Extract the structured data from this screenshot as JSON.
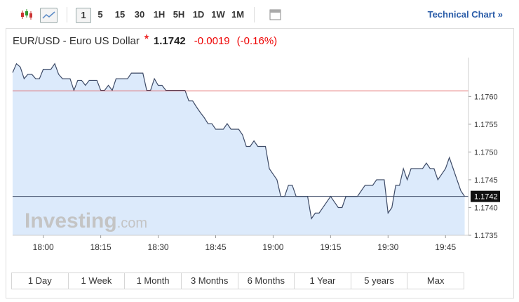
{
  "toolbar": {
    "intervals": [
      "1",
      "5",
      "15",
      "30",
      "1H",
      "5H",
      "1D",
      "1W",
      "1M"
    ],
    "link": "Technical Chart »"
  },
  "header": {
    "instrument": "EUR/USD - Euro US Dollar",
    "price": "1.1742",
    "change": "-0.0019",
    "change_pct": "(-0.16%)"
  },
  "watermark": {
    "brand": "Investing",
    "suffix": ".com"
  },
  "ranges": [
    "1 Day",
    "1 Week",
    "1 Month",
    "3 Months",
    "6 Months",
    "1 Year",
    "5 years",
    "Max"
  ],
  "chart_data": {
    "type": "area",
    "line_color": "#3d4a66",
    "fill_color": "#dceafb",
    "x": [
      "17:52",
      "17:53",
      "17:54",
      "17:55",
      "17:56",
      "17:57",
      "17:58",
      "17:59",
      "18:00",
      "18:01",
      "18:02",
      "18:03",
      "18:04",
      "18:05",
      "18:06",
      "18:07",
      "18:08",
      "18:09",
      "18:10",
      "18:11",
      "18:12",
      "18:13",
      "18:14",
      "18:15",
      "18:16",
      "18:17",
      "18:18",
      "18:19",
      "18:20",
      "18:21",
      "18:22",
      "18:23",
      "18:24",
      "18:25",
      "18:26",
      "18:27",
      "18:28",
      "18:29",
      "18:30",
      "18:31",
      "18:32",
      "18:33",
      "18:34",
      "18:35",
      "18:36",
      "18:37",
      "18:38",
      "18:39",
      "18:40",
      "18:41",
      "18:42",
      "18:43",
      "18:44",
      "18:45",
      "18:46",
      "18:47",
      "18:48",
      "18:49",
      "18:50",
      "18:51",
      "18:52",
      "18:53",
      "18:54",
      "18:55",
      "18:56",
      "18:57",
      "18:58",
      "18:59",
      "19:00",
      "19:01",
      "19:02",
      "19:03",
      "19:04",
      "19:05",
      "19:06",
      "19:07",
      "19:08",
      "19:09",
      "19:10",
      "19:11",
      "19:12",
      "19:13",
      "19:14",
      "19:15",
      "19:16",
      "19:17",
      "19:18",
      "19:19",
      "19:20",
      "19:21",
      "19:22",
      "19:23",
      "19:24",
      "19:25",
      "19:26",
      "19:27",
      "19:28",
      "19:29",
      "19:30",
      "19:31",
      "19:32",
      "19:33",
      "19:34",
      "19:35",
      "19:36",
      "19:37",
      "19:38",
      "19:39",
      "19:40",
      "19:41",
      "19:42",
      "19:43",
      "19:44",
      "19:45",
      "19:46",
      "19:47",
      "19:48",
      "19:49",
      "19:50"
    ],
    "values": [
      1.17643,
      1.17659,
      1.17653,
      1.17632,
      1.1764,
      1.1764,
      1.17632,
      1.17632,
      1.17649,
      1.17649,
      1.17649,
      1.17659,
      1.1764,
      1.17632,
      1.17632,
      1.17632,
      1.17611,
      1.17629,
      1.17629,
      1.1762,
      1.17629,
      1.17629,
      1.17629,
      1.17611,
      1.17611,
      1.1762,
      1.17611,
      1.17632,
      1.17632,
      1.17632,
      1.17632,
      1.17642,
      1.17642,
      1.17642,
      1.17642,
      1.17611,
      1.17611,
      1.17632,
      1.1762,
      1.1762,
      1.17611,
      1.17611,
      1.17611,
      1.17611,
      1.17611,
      1.17611,
      1.17592,
      1.17592,
      1.17581,
      1.17571,
      1.17562,
      1.17551,
      1.17551,
      1.17541,
      1.17541,
      1.17541,
      1.17551,
      1.17541,
      1.17541,
      1.17541,
      1.17531,
      1.1751,
      1.1751,
      1.1752,
      1.1751,
      1.1751,
      1.1751,
      1.1747,
      1.1746,
      1.1745,
      1.1742,
      1.1742,
      1.1744,
      1.1744,
      1.1742,
      1.1742,
      1.1742,
      1.1742,
      1.1738,
      1.1739,
      1.1739,
      1.174,
      1.1741,
      1.1742,
      1.1741,
      1.174,
      1.174,
      1.1742,
      1.1742,
      1.1742,
      1.1742,
      1.1743,
      1.1744,
      1.1744,
      1.1744,
      1.1745,
      1.1745,
      1.1745,
      1.1739,
      1.174,
      1.1744,
      1.1744,
      1.1747,
      1.1745,
      1.1747,
      1.1747,
      1.1747,
      1.1747,
      1.1748,
      1.1747,
      1.1747,
      1.1745,
      1.1746,
      1.1747,
      1.1749,
      1.1747,
      1.1745,
      1.1743,
      1.1742
    ],
    "xlim": [
      "17:52",
      "19:51"
    ],
    "xticks": [
      "18:00",
      "18:15",
      "18:30",
      "18:45",
      "19:00",
      "19:15",
      "19:30",
      "19:45"
    ],
    "ylim": [
      1.1735,
      1.1767
    ],
    "yticks": [
      {
        "value": 1.176,
        "label": "1.1760"
      },
      1.1755,
      {
        "value": 1.175,
        "label": "1.1750"
      },
      1.1745,
      {
        "value": 1.174,
        "label": "1.1740"
      },
      1.1735
    ],
    "previous_close": 1.1761,
    "previous_close_color": "#e06060",
    "last_value": 1.1742
  }
}
